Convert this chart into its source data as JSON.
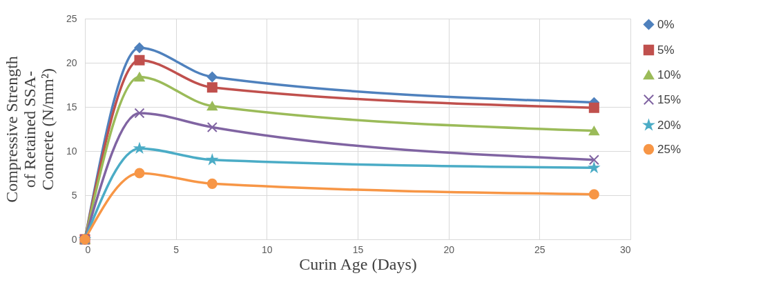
{
  "chart_data": {
    "type": "line",
    "xlabel": "Curin Age (Days)",
    "ylabel": "Compressive Strength\nof Retained SSA-\nConcrete (N/mm²)",
    "x": [
      0,
      3,
      7,
      28
    ],
    "xlim": [
      0,
      30
    ],
    "xticks": [
      0,
      5,
      10,
      15,
      20,
      25,
      30
    ],
    "ylim": [
      0,
      25
    ],
    "yticks": [
      0,
      5,
      10,
      15,
      20,
      25
    ],
    "grid": true,
    "legend": "right",
    "series": [
      {
        "name": "0%",
        "color": "#4f81bd",
        "marker": "diamond",
        "values": [
          0,
          21.7,
          18.4,
          15.5
        ]
      },
      {
        "name": "5%",
        "color": "#c0504d",
        "marker": "square",
        "values": [
          0,
          20.3,
          17.2,
          14.9
        ]
      },
      {
        "name": "10%",
        "color": "#9bbb59",
        "marker": "triangle",
        "values": [
          0,
          18.4,
          15.1,
          12.3
        ]
      },
      {
        "name": "15%",
        "color": "#8064a2",
        "marker": "cross",
        "values": [
          0,
          14.3,
          12.7,
          9.0
        ]
      },
      {
        "name": "20%",
        "color": "#4bacc6",
        "marker": "star",
        "values": [
          0,
          10.3,
          9.0,
          8.1
        ]
      },
      {
        "name": "25%",
        "color": "#f79646",
        "marker": "circle",
        "values": [
          0,
          7.5,
          6.3,
          5.1
        ]
      }
    ]
  }
}
